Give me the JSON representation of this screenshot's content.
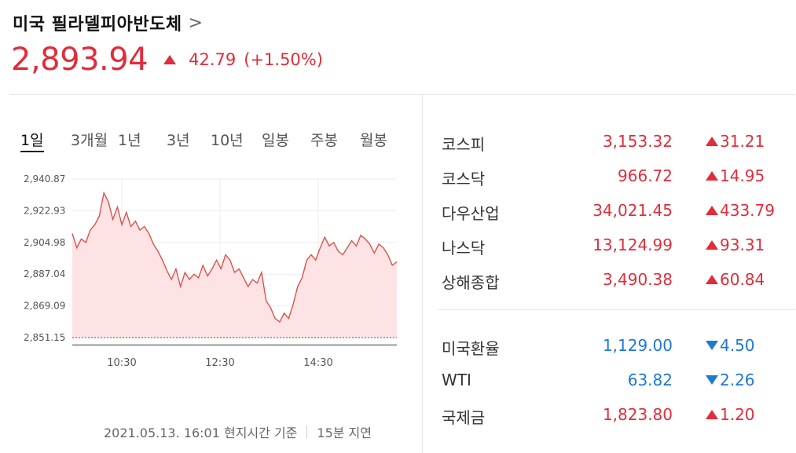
{
  "header": {
    "name": "미국 필라델피아반도체",
    "chevron": ">",
    "price": "2,893.94",
    "change": "42.79",
    "change_pct": "(+1.50%)",
    "direction": "up",
    "up_color": "#e22c3a",
    "down_color": "#1e78d6"
  },
  "tabs": [
    "1일",
    "3개월",
    "1년",
    "3년",
    "10년",
    "일봉",
    "주봉",
    "월봉"
  ],
  "active_tab": "1일",
  "chart_data": {
    "type": "area",
    "y_ticks": [
      "2,940.87",
      "2,922.93",
      "2,904.98",
      "2,887.04",
      "2,869.09",
      "2,851.15"
    ],
    "x_ticks": [
      "10:30",
      "12:30",
      "14:30"
    ],
    "ylim": [
      2851.15,
      2940.87
    ],
    "reference_line": 2851.15,
    "series_color": "#d9534f",
    "fill_color": "#fde3e3",
    "values": [
      2910,
      2902,
      2907,
      2905,
      2912,
      2915,
      2920,
      2933,
      2928,
      2918,
      2925,
      2915,
      2922,
      2914,
      2917,
      2912,
      2914,
      2910,
      2904,
      2900,
      2895,
      2889,
      2884,
      2890,
      2880,
      2888,
      2884,
      2887,
      2885,
      2892,
      2886,
      2890,
      2895,
      2890,
      2898,
      2895,
      2888,
      2890,
      2885,
      2880,
      2884,
      2882,
      2888,
      2872,
      2868,
      2862,
      2860,
      2865,
      2862,
      2870,
      2880,
      2885,
      2895,
      2898,
      2895,
      2902,
      2908,
      2903,
      2905,
      2900,
      2898,
      2902,
      2906,
      2903,
      2909,
      2907,
      2904,
      2899,
      2904,
      2902,
      2898,
      2892,
      2894
    ]
  },
  "footer": {
    "timestamp": "2021.05.13. 16:01 현지시간 기준",
    "delay": "15분 지연"
  },
  "markets": [
    {
      "name": "코스피",
      "value": "3,153.32",
      "change": "31.21",
      "direction": "up"
    },
    {
      "name": "코스닥",
      "value": "966.72",
      "change": "14.95",
      "direction": "up"
    },
    {
      "name": "다우산업",
      "value": "34,021.45",
      "change": "433.79",
      "direction": "up"
    },
    {
      "name": "나스닥",
      "value": "13,124.99",
      "change": "93.31",
      "direction": "up"
    },
    {
      "name": "상해종합",
      "value": "3,490.38",
      "change": "60.84",
      "direction": "up"
    }
  ],
  "markets2": [
    {
      "name": "미국환율",
      "value": "1,129.00",
      "change": "4.50",
      "direction": "down"
    },
    {
      "name": "WTI",
      "value": "63.82",
      "change": "2.26",
      "direction": "down"
    },
    {
      "name": "국제금",
      "value": "1,823.80",
      "change": "1.20",
      "direction": "up"
    }
  ]
}
